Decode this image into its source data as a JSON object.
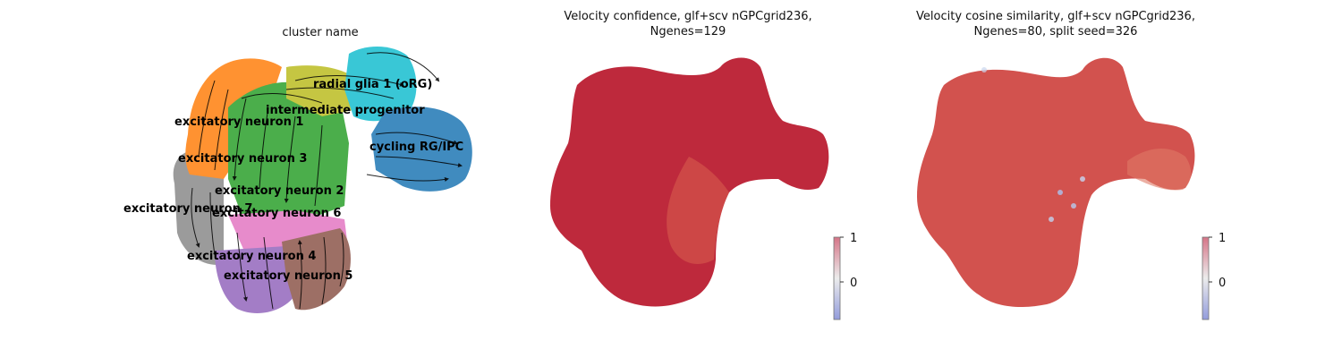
{
  "panels": [
    {
      "title_lines": [
        "cluster name"
      ],
      "clusters": [
        {
          "name": "radial glia 1 (oRG)",
          "color": "#bcbd22"
        },
        {
          "name": "intermediate progenitor",
          "color": "#d62728"
        },
        {
          "name": "excitatory neuron 1",
          "color": "#ff7f0e"
        },
        {
          "name": "cycling RG/IPC",
          "color": "#1f77b4"
        },
        {
          "name": "excitatory neuron 3",
          "color": "#2ca02c"
        },
        {
          "name": "excitatory neuron 2",
          "color": "#17becf"
        },
        {
          "name": "excitatory neuron 7",
          "color": "#7f7f7f"
        },
        {
          "name": "excitatory neuron 6",
          "color": "#e377c2"
        },
        {
          "name": "excitatory neuron 4",
          "color": "#9467bd"
        },
        {
          "name": "excitatory neuron 5",
          "color": "#8c564b"
        }
      ],
      "has_streamlines": true
    },
    {
      "title_lines": [
        "Velocity confidence, glf+scv nGPCgrid236,",
        "Ngenes=129"
      ],
      "colormap": "coolwarm",
      "colorbar_ticks": [
        "1",
        "0"
      ]
    },
    {
      "title_lines": [
        "Velocity cosine similarity, glf+scv nGPCgrid236,",
        "Ngenes=80, split seed=326"
      ],
      "colormap": "coolwarm",
      "colorbar_ticks": [
        "1",
        "0"
      ]
    }
  ]
}
